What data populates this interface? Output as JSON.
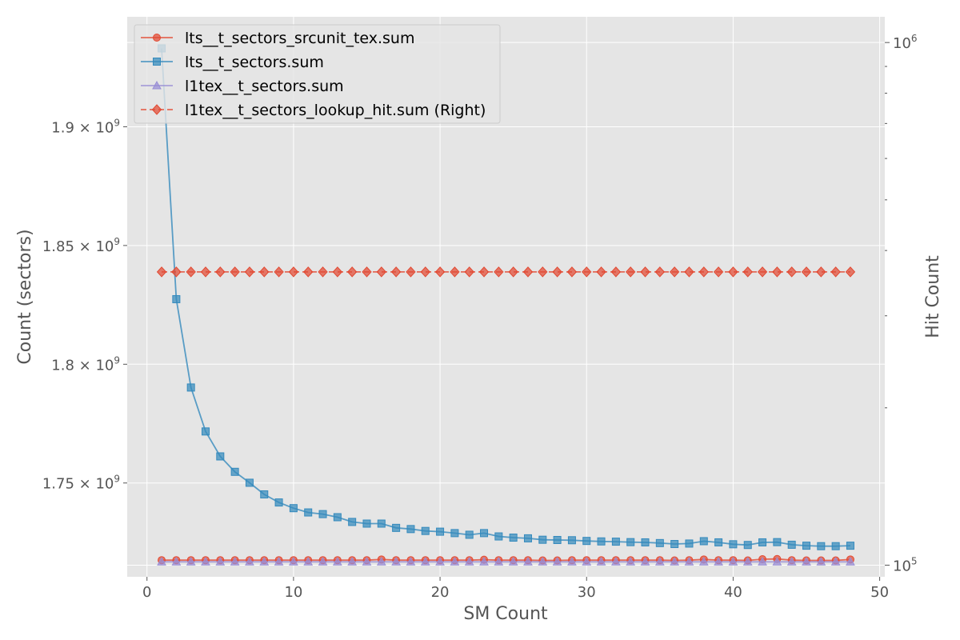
{
  "chart_data": {
    "type": "line",
    "xlabel": "SM Count",
    "ylabel": "Count (sectors)",
    "ylabel_right": "Hit Count",
    "xlim": [
      -1.35,
      50.35
    ],
    "ylim": [
      1710500000.0,
      1946300000.0
    ],
    "ylim_right": [
      95000,
      1120000
    ],
    "yscale_right": "log",
    "grid": true,
    "legend_position": "top-left",
    "x_ticks": [
      0,
      10,
      20,
      30,
      40,
      50
    ],
    "x_tick_labels": [
      "0",
      "10",
      "20",
      "30",
      "40",
      "50"
    ],
    "y_ticks": [
      1750000000.0,
      1800000000.0,
      1850000000.0,
      1900000000.0
    ],
    "y_tick_labels": [
      {
        "base": "1.75 × 10",
        "exp": "9"
      },
      {
        "base": "1.8 × 10",
        "exp": "9"
      },
      {
        "base": "1.85 × 10",
        "exp": "9"
      },
      {
        "base": "1.9 × 10",
        "exp": "9"
      }
    ],
    "y_right_ticks": [
      100000,
      1000000
    ],
    "y_right_tick_labels": [
      {
        "base": "10",
        "exp": "5"
      },
      {
        "base": "10",
        "exp": "6"
      }
    ],
    "x": [
      1,
      2,
      3,
      4,
      5,
      6,
      7,
      8,
      9,
      10,
      11,
      12,
      13,
      14,
      15,
      16,
      17,
      18,
      19,
      20,
      21,
      22,
      23,
      24,
      25,
      26,
      27,
      28,
      29,
      30,
      31,
      32,
      33,
      34,
      35,
      36,
      37,
      38,
      39,
      40,
      41,
      42,
      43,
      44,
      45,
      46,
      47,
      48
    ],
    "series": [
      {
        "name": "lts__t_sectors_srcunit_tex.sum",
        "axis": "left",
        "color": "#e24a33",
        "marker": "circle",
        "dashed": false,
        "values": [
          1717500000.0,
          1717500000.0,
          1717500000.0,
          1717500000.0,
          1717500000.0,
          1717500000.0,
          1717500000.0,
          1717500000.0,
          1717500000.0,
          1717500000.0,
          1717500000.0,
          1717500000.0,
          1717500000.0,
          1717500000.0,
          1717500000.0,
          1717800000.0,
          1717500000.0,
          1717500000.0,
          1717500000.0,
          1717500000.0,
          1717500000.0,
          1717500000.0,
          1717700000.0,
          1717500000.0,
          1717500000.0,
          1717500000.0,
          1717400000.0,
          1717400000.0,
          1717500000.0,
          1717500000.0,
          1717500000.0,
          1717500000.0,
          1717500000.0,
          1717500000.0,
          1717500000.0,
          1717400000.0,
          1717500000.0,
          1717800000.0,
          1717500000.0,
          1717500000.0,
          1717400000.0,
          1717900000.0,
          1718000000.0,
          1717500000.0,
          1717400000.0,
          1717400000.0,
          1717400000.0,
          1717800000.0
        ]
      },
      {
        "name": "lts__t_sectors.sum",
        "axis": "left",
        "color": "#348abd",
        "marker": "square",
        "dashed": false,
        "values": [
          1933000000.0,
          1827400000.0,
          1790200000.0,
          1771700000.0,
          1761200000.0,
          1754700000.0,
          1750100000.0,
          1745200000.0,
          1741800000.0,
          1739400000.0,
          1737600000.0,
          1736900000.0,
          1735600000.0,
          1733600000.0,
          1732900000.0,
          1732900000.0,
          1731100000.0,
          1730600000.0,
          1729800000.0,
          1729500000.0,
          1728900000.0,
          1728200000.0,
          1728900000.0,
          1727500000.0,
          1727000000.0,
          1726700000.0,
          1726100000.0,
          1726000000.0,
          1725900000.0,
          1725600000.0,
          1725400000.0,
          1725300000.0,
          1725100000.0,
          1725000000.0,
          1724700000.0,
          1724300000.0,
          1724500000.0,
          1725500000.0,
          1725000000.0,
          1724200000.0,
          1723900000.0,
          1725000000.0,
          1725100000.0,
          1724000000.0,
          1723600000.0,
          1723400000.0,
          1723400000.0,
          1723600000.0
        ]
      },
      {
        "name": "l1tex__t_sectors.sum",
        "axis": "left",
        "color": "#988ed5",
        "marker": "triangle",
        "dashed": false,
        "values": [
          1716800000.0,
          1716800000.0,
          1716800000.0,
          1716800000.0,
          1716800000.0,
          1716800000.0,
          1716800000.0,
          1716800000.0,
          1716800000.0,
          1716800000.0,
          1716800000.0,
          1716800000.0,
          1716800000.0,
          1716800000.0,
          1716800000.0,
          1716800000.0,
          1716800000.0,
          1716800000.0,
          1716800000.0,
          1716800000.0,
          1716800000.0,
          1716800000.0,
          1716800000.0,
          1716800000.0,
          1716800000.0,
          1716800000.0,
          1716800000.0,
          1716800000.0,
          1716800000.0,
          1716800000.0,
          1716800000.0,
          1716800000.0,
          1716800000.0,
          1716800000.0,
          1716800000.0,
          1716800000.0,
          1716800000.0,
          1716800000.0,
          1716800000.0,
          1716800000.0,
          1716800000.0,
          1716800000.0,
          1716800000.0,
          1716800000.0,
          1716800000.0,
          1716800000.0,
          1716800000.0,
          1716800000.0
        ]
      },
      {
        "name": "l1tex__t_sectors_lookup_hit.sum (Right)",
        "axis": "right",
        "color": "#e24a33",
        "marker": "diamond",
        "dashed": true,
        "values": [
          364000,
          364000,
          364000,
          364000,
          364000,
          364000,
          364000,
          364000,
          364000,
          364000,
          364000,
          364000,
          364000,
          364000,
          364000,
          364000,
          364000,
          364000,
          364000,
          364000,
          364000,
          364000,
          364000,
          364000,
          364000,
          364000,
          364000,
          364000,
          364000,
          364000,
          364000,
          364000,
          364000,
          364000,
          364000,
          364000,
          364000,
          364000,
          364000,
          364000,
          364000,
          364000,
          364000,
          364000,
          364000,
          364000,
          364000,
          364000
        ]
      }
    ]
  }
}
